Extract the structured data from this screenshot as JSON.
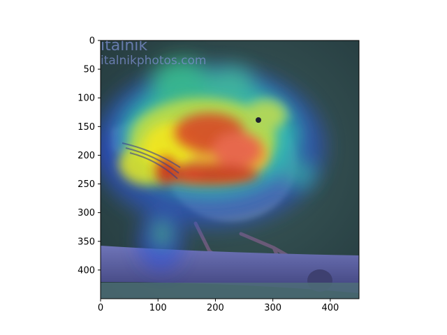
{
  "watermark": {
    "line1": "italnik",
    "line2": "italnikphotos.com"
  },
  "axes": {
    "x_ticks": [
      "0",
      "100",
      "200",
      "300",
      "400"
    ],
    "y_ticks": [
      "0",
      "50",
      "100",
      "150",
      "200",
      "250",
      "300",
      "350",
      "400"
    ],
    "x_tick_values": [
      0,
      100,
      200,
      300,
      400
    ],
    "y_tick_values": [
      0,
      50,
      100,
      150,
      200,
      250,
      300,
      350,
      400
    ],
    "xlim": [
      0,
      450
    ],
    "ylim": [
      450,
      0
    ]
  },
  "colors": {
    "background": "#2e4a4c",
    "branch": "#5a5fa0",
    "heat_high": "#d73020",
    "heat_mid": "#f5e61e",
    "heat_low": "#2fd0c0",
    "heat_cool": "#2d55c8"
  }
}
